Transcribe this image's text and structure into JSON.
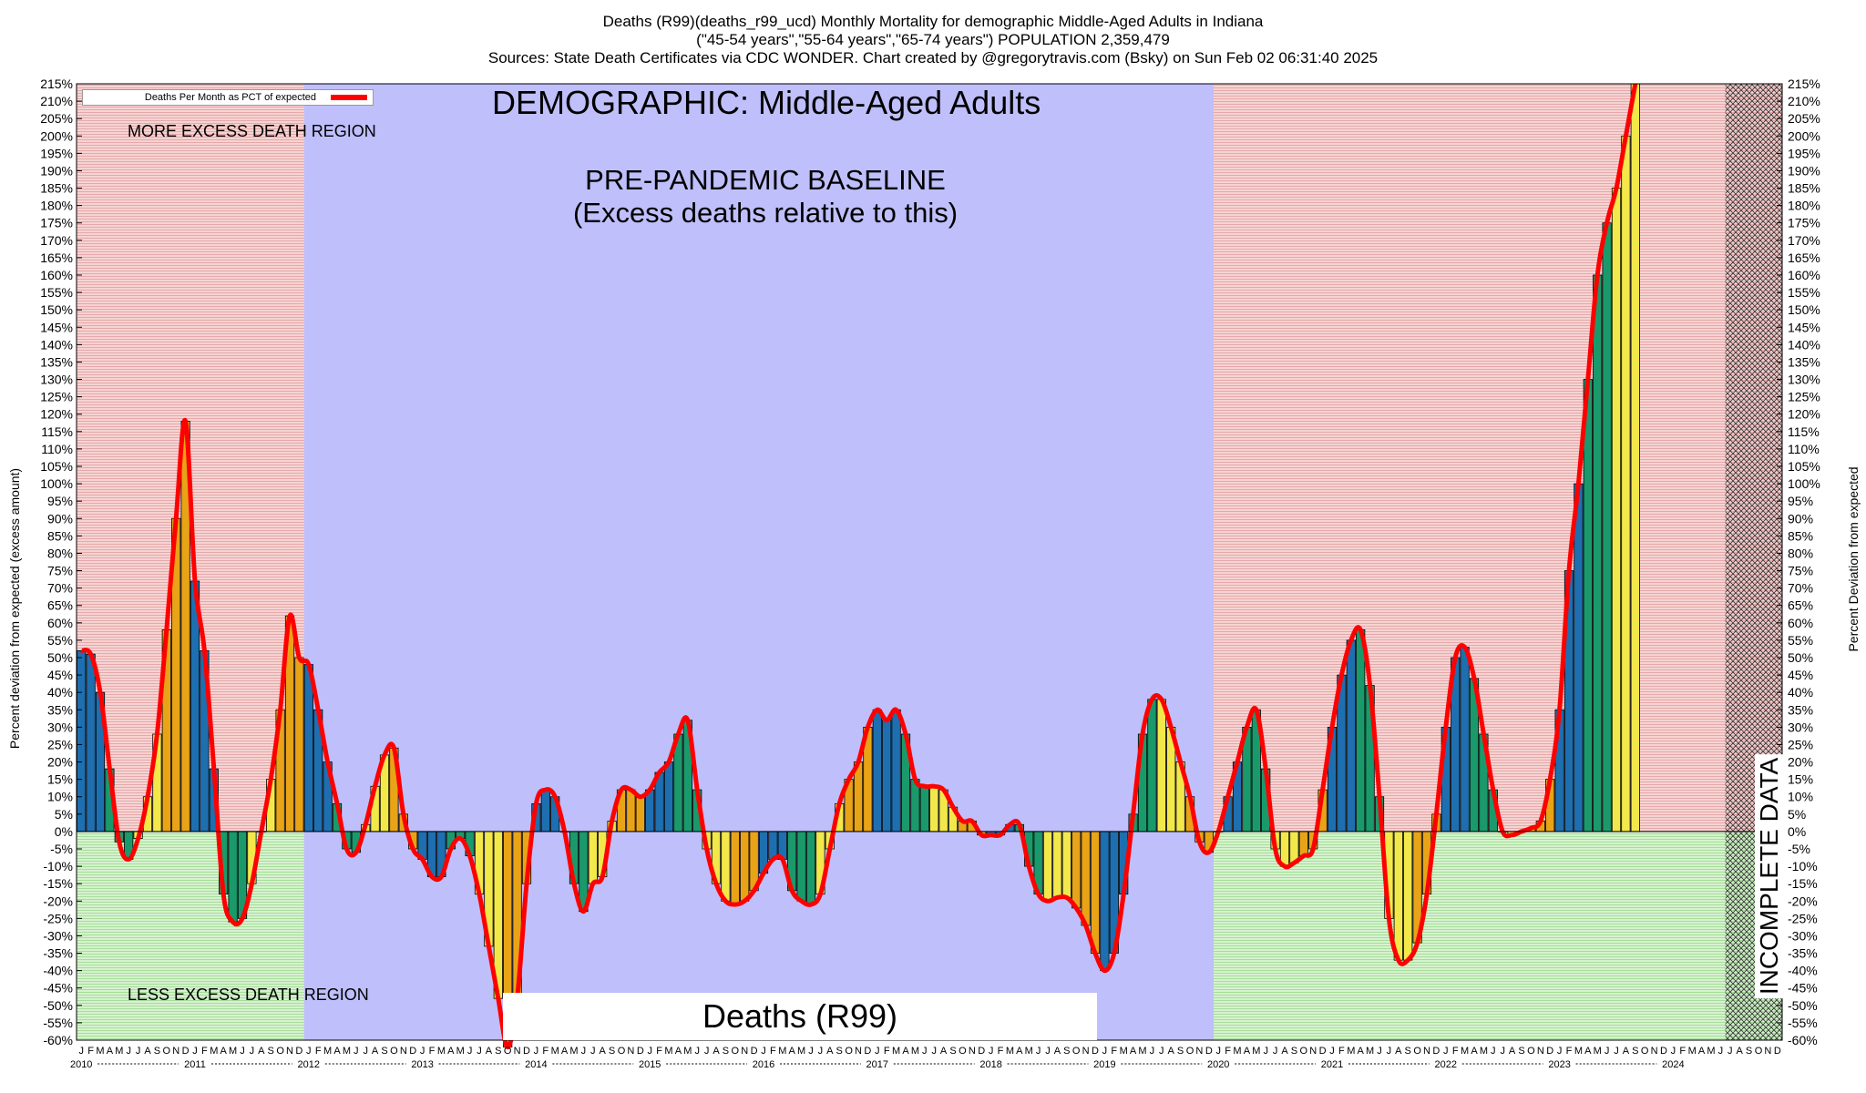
{
  "header": {
    "title_line1": "Deaths (R99)(deaths_r99_ucd) Monthly Mortality for demographic Middle-Aged Adults in Indiana",
    "title_line2": "(\"45-54 years\",\"55-64 years\",\"65-74 years\") POPULATION 2,359,479",
    "title_line3": "Sources: State Death Certificates via CDC WONDER.                Chart created by @gregorytravis.com (Bsky) on Sun Feb 02 06:31:40 2025"
  },
  "annotations": {
    "more_region": "MORE EXCESS DEATH REGION",
    "less_region": "LESS EXCESS DEATH REGION",
    "demographic": "DEMOGRAPHIC: Middle-Aged Adults",
    "baseline_line1": "PRE-PANDEMIC BASELINE",
    "baseline_line2": "(Excess deaths relative to this)",
    "incomplete": "INCOMPLETE DATA",
    "footer": "Deaths (R99)"
  },
  "legend": {
    "label": "Deaths Per Month as PCT of expected",
    "position": "top-left"
  },
  "colors": {
    "line": "#ff0000",
    "excess_region": "#f2c4c4",
    "less_region": "#c9ecc0",
    "baseline_region": "#bfbffb",
    "bar_q1": "#1e6fb0",
    "bar_q2": "#1a9a6b",
    "bar_q3": "#f2e84a",
    "bar_q4": "#e8a317"
  },
  "chart_data": {
    "type": "bar",
    "series_line_name": "Deaths Per Month as PCT of expected",
    "ylabel_left": "Percent deviation from expected (excess amount)",
    "ylabel_right": "Percent Deviation from expected",
    "ylim": [
      -60,
      215
    ],
    "y_tick_step": 5,
    "grid": true,
    "x_month_letters": [
      "J",
      "F",
      "M",
      "A",
      "M",
      "J",
      "J",
      "A",
      "S",
      "O",
      "N",
      "D"
    ],
    "years": [
      "2010",
      "2011",
      "2012",
      "2013",
      "2014",
      "2015",
      "2016",
      "2017",
      "2018",
      "2019",
      "2020",
      "2021",
      "2022",
      "2023",
      "2024"
    ],
    "start_month": "2010-01",
    "baseline_period": [
      "2012-01",
      "2019-12"
    ],
    "incomplete_from": "2024-07",
    "values": [
      52,
      51,
      40,
      18,
      -3,
      -8,
      -2,
      10,
      28,
      58,
      90,
      118,
      72,
      52,
      18,
      -18,
      -26,
      -25,
      -15,
      0,
      15,
      35,
      62,
      50,
      48,
      35,
      20,
      8,
      -5,
      -6,
      2,
      13,
      22,
      24,
      5,
      -5,
      -8,
      -13,
      -13,
      -5,
      -2,
      -7,
      -18,
      -33,
      -48,
      -62,
      -48,
      -15,
      8,
      12,
      10,
      0,
      -15,
      -23,
      -15,
      -13,
      3,
      12,
      12,
      10,
      12,
      17,
      20,
      28,
      32,
      12,
      -5,
      -15,
      -20,
      -21,
      -20,
      -17,
      -12,
      -8,
      -8,
      -17,
      -20,
      -21,
      -18,
      -5,
      8,
      15,
      20,
      30,
      35,
      32,
      35,
      28,
      15,
      13,
      13,
      12,
      7,
      3,
      3,
      -1,
      -1,
      -1,
      2,
      2,
      -10,
      -18,
      -20,
      -19,
      -19,
      -22,
      -27,
      -35,
      -40,
      -35,
      -18,
      5,
      28,
      38,
      38,
      30,
      20,
      10,
      -3,
      -6,
      0,
      10,
      20,
      30,
      35,
      18,
      -5,
      -10,
      -9,
      -7,
      -5,
      12,
      30,
      45,
      55,
      58,
      42,
      10,
      -25,
      -37,
      -37,
      -32,
      -18,
      5,
      30,
      50,
      53,
      44,
      28,
      12,
      0,
      -1,
      0,
      1,
      3,
      15,
      35,
      75,
      100,
      130,
      160,
      175,
      185,
      200,
      215
    ]
  }
}
